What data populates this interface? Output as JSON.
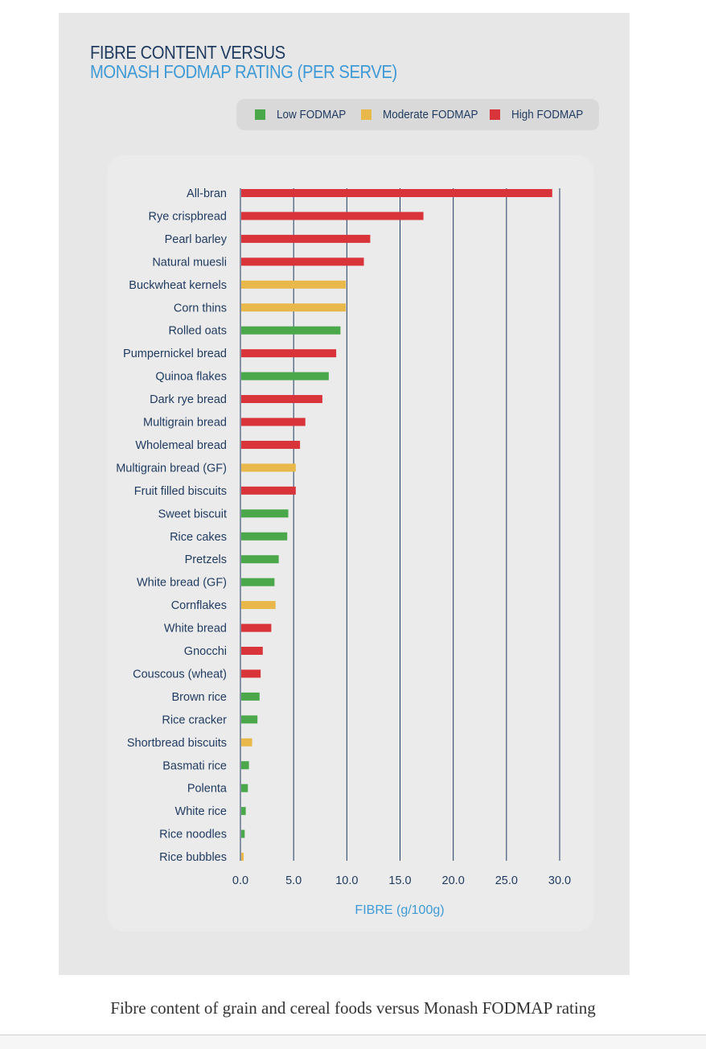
{
  "figure": {
    "caption": "Fibre content of grain and cereal foods versus Monash FODMAP rating"
  },
  "chart_data": {
    "type": "bar",
    "orientation": "horizontal",
    "title": "FIBRE CONTENT VERSUS",
    "subtitle": "MONASH FODMAP RATING (PER SERVE)",
    "xlabel": "FIBRE (g/100g)",
    "xlim": [
      0,
      30
    ],
    "x_ticks": [
      "0.0",
      "5.0",
      "10.0",
      "15.0",
      "20.0",
      "25.0",
      "30.0"
    ],
    "grid": "vertical",
    "legend_position": "top",
    "legend": [
      {
        "key": "low",
        "label": "Low FODMAP",
        "color": "#4aa84a"
      },
      {
        "key": "moderate",
        "label": "Moderate FODMAP",
        "color": "#e8b84a"
      },
      {
        "key": "high",
        "label": "High FODMAP",
        "color": "#d9343a"
      }
    ],
    "bars": [
      {
        "label": "All-bran",
        "value": 29.3,
        "rating": "high"
      },
      {
        "label": "Rye crispbread",
        "value": 17.2,
        "rating": "high"
      },
      {
        "label": "Pearl barley",
        "value": 12.2,
        "rating": "high"
      },
      {
        "label": "Natural muesli",
        "value": 11.6,
        "rating": "high"
      },
      {
        "label": "Buckwheat kernels",
        "value": 9.9,
        "rating": "moderate"
      },
      {
        "label": "Corn thins",
        "value": 9.9,
        "rating": "moderate"
      },
      {
        "label": "Rolled oats",
        "value": 9.4,
        "rating": "low"
      },
      {
        "label": "Pumpernickel bread",
        "value": 9.0,
        "rating": "high"
      },
      {
        "label": "Quinoa flakes",
        "value": 8.3,
        "rating": "low"
      },
      {
        "label": "Dark rye bread",
        "value": 7.7,
        "rating": "high"
      },
      {
        "label": "Multigrain bread",
        "value": 6.1,
        "rating": "high"
      },
      {
        "label": "Wholemeal bread",
        "value": 5.6,
        "rating": "high"
      },
      {
        "label": "Multigrain bread (GF)",
        "value": 5.2,
        "rating": "moderate"
      },
      {
        "label": "Fruit filled biscuits",
        "value": 5.2,
        "rating": "high"
      },
      {
        "label": "Sweet biscuit",
        "value": 4.5,
        "rating": "low"
      },
      {
        "label": "Rice cakes",
        "value": 4.4,
        "rating": "low"
      },
      {
        "label": "Pretzels",
        "value": 3.6,
        "rating": "low"
      },
      {
        "label": "White bread (GF)",
        "value": 3.2,
        "rating": "low"
      },
      {
        "label": "Cornflakes",
        "value": 3.3,
        "rating": "moderate"
      },
      {
        "label": "White bread",
        "value": 2.9,
        "rating": "high"
      },
      {
        "label": "Gnocchi",
        "value": 2.1,
        "rating": "high"
      },
      {
        "label": "Couscous (wheat)",
        "value": 1.9,
        "rating": "high"
      },
      {
        "label": "Brown rice",
        "value": 1.8,
        "rating": "low"
      },
      {
        "label": "Rice cracker",
        "value": 1.6,
        "rating": "low"
      },
      {
        "label": "Shortbread biscuits",
        "value": 1.1,
        "rating": "moderate"
      },
      {
        "label": "Basmati rice",
        "value": 0.8,
        "rating": "low"
      },
      {
        "label": "Polenta",
        "value": 0.7,
        "rating": "low"
      },
      {
        "label": "White rice",
        "value": 0.5,
        "rating": "low"
      },
      {
        "label": "Rice noodles",
        "value": 0.4,
        "rating": "low"
      },
      {
        "label": "Rice bubbles",
        "value": 0.3,
        "rating": "moderate"
      }
    ]
  }
}
